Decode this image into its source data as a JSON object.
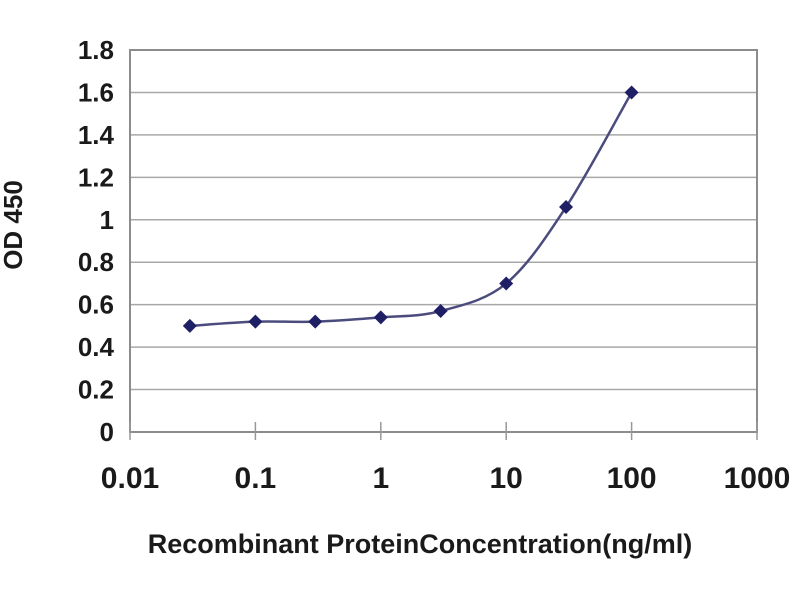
{
  "colors": {
    "background": "#ffffff",
    "line": "#4b4b7e",
    "marker": "#1f1f66",
    "grid": "#a8a8a8",
    "axis_frame": "#8c8c8c",
    "tick": "#999999",
    "text": "#1a1a1a"
  },
  "chart_data": {
    "type": "line",
    "x_scale": "log",
    "x": [
      0.03,
      0.1,
      0.3,
      1,
      3,
      10,
      30,
      100
    ],
    "values": [
      0.5,
      0.52,
      0.52,
      0.54,
      0.57,
      0.7,
      1.06,
      1.6
    ],
    "title": "",
    "xlabel": "Recombinant ProteinConcentration(ng/ml)",
    "ylabel": "OD 450",
    "xlim": [
      0.01,
      1000
    ],
    "ylim": [
      0,
      1.8
    ],
    "x_ticks": [
      0.01,
      0.1,
      1,
      10,
      100,
      1000
    ],
    "x_tick_labels": [
      "0.01",
      "0.1",
      "1",
      "10",
      "100",
      "1000"
    ],
    "y_ticks": [
      0,
      0.2,
      0.4,
      0.6,
      0.8,
      1,
      1.2,
      1.4,
      1.6,
      1.8
    ],
    "y_tick_labels": [
      "0",
      "0.2",
      "0.4",
      "0.6",
      "0.8",
      "1",
      "1.2",
      "1.4",
      "1.6",
      "1.8"
    ],
    "grid": "horizontal-only",
    "legend": "none",
    "marker": "diamond",
    "line_style": "smooth"
  }
}
